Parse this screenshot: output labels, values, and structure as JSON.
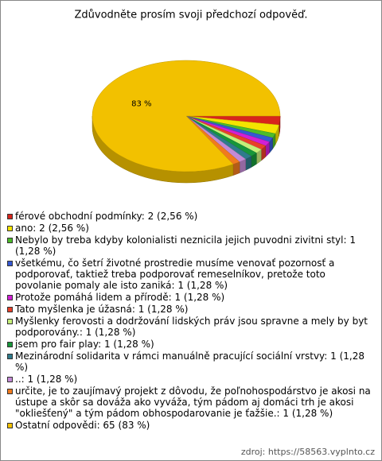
{
  "chart_data": {
    "type": "pie",
    "title": "Zdůvodněte prosím svoji předchozí odpověď.",
    "categories": [
      "férové obchodní podmínky: 2 (2,56 %)",
      "ano: 2 (2,56 %)",
      "Nebylo by treba kdyby kolonialisti neznicila jejich puvodni zivitni styl: 1 (1,28 %)",
      "všetkému, čo šetrí životné prostredie musíme venovať pozornosť a podporovať, taktiež treba podporovať remeselníkov, pretože toto povolanie pomaly ale isto zaniká: 1 (1,28 %)",
      "Protože pomáhá lidem a přírodě: 1 (1,28 %)",
      "Tato myšlenka je úžasná: 1 (1,28 %)",
      "Myšlenky ferovosti a dodržování lidských práv jsou spravne a mely by byt podporovány.: 1 (1,28 %)",
      "jsem pro fair play: 1 (1,28 %)",
      "Mezinárodní solidarita v rámci manuálně pracující sociální vrstvy: 1 (1,28 %)",
      "..: 1 (1,28 %)",
      "určite, je to zaujímavý projekt z dôvodu, že poľnohospodárstvo je akosi na ústupe a skôr sa dováža ako vyváža, tým pádom aj domáci trh je akosi \"okliešťený\" a tým pádom obhospodarovanie je ťažšie.: 1 (1,28 %)",
      "Ostatní odpovědi: 65 (83 %)"
    ],
    "values": [
      2,
      2,
      1,
      1,
      1,
      1,
      1,
      1,
      1,
      1,
      1,
      65
    ],
    "value_labels": [
      null,
      null,
      null,
      null,
      null,
      null,
      null,
      null,
      null,
      null,
      null,
      "83 %"
    ],
    "colors": [
      "#d8251c",
      "#f4e400",
      "#4cbc2a",
      "#3559d2",
      "#d21fd6",
      "#e8402a",
      "#c6ef7a",
      "#17963a",
      "#2f7b8c",
      "#c48ad6",
      "#f07a1e",
      "#f2c100"
    ],
    "source": "zdroj: https://58563.vyplnto.cz"
  }
}
